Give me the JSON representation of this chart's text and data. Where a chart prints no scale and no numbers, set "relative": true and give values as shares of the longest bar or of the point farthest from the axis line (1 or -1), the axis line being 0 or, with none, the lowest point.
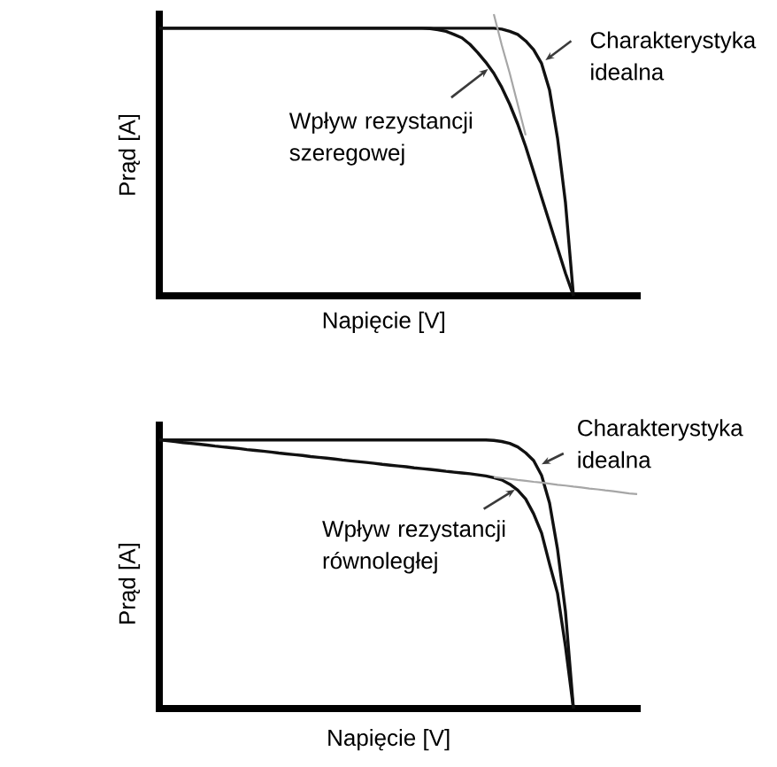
{
  "chart_data": [
    {
      "type": "line",
      "relative": true,
      "xlabel": "Napięcie [V]",
      "ylabel": "Prąd [A]",
      "annotations": [
        "Charakterystyka idealna",
        "Wpływ rezystancji szeregowej"
      ],
      "categories": [
        null,
        null,
        null,
        null,
        null,
        null,
        null,
        null,
        null,
        null,
        null,
        null,
        null,
        null,
        null,
        null,
        null,
        null,
        null,
        null,
        null,
        null,
        null,
        null,
        null,
        null,
        null,
        null,
        null,
        null,
        null,
        null,
        null,
        null,
        null,
        null,
        null,
        null,
        null,
        null,
        null,
        null,
        null,
        null,
        null,
        null,
        null,
        null,
        null,
        null,
        null,
        null,
        null,
        null,
        null,
        null,
        null,
        null,
        null,
        null,
        null
      ],
      "series": [
        {
          "color": "#111111",
          "values": [
            0.95,
            0.95,
            0.95,
            0.95,
            0.95,
            0.95,
            0.95,
            0.95,
            0.95,
            0.95,
            0.95,
            0.95,
            0.95,
            0.95,
            0.95,
            0.95,
            0.95,
            0.95,
            0.95,
            0.95,
            0.95,
            0.95,
            0.95,
            0.95,
            0.95,
            0.95,
            0.95,
            0.95,
            0.95,
            0.95,
            0.95,
            0.95,
            0.95,
            0.95,
            0.95,
            0.95,
            0.95,
            0.95,
            0.95,
            0.95,
            0.95,
            0.95,
            0.95,
            0.947,
            0.939,
            0.928,
            0.905,
            0.874,
            0.825,
            0.73,
            0.56,
            0.33,
            0,
            null,
            null,
            null,
            null,
            null,
            null,
            null,
            null
          ]
        },
        {
          "color": "#111111",
          "values": [
            0.95,
            0.95,
            0.95,
            0.95,
            0.95,
            0.95,
            0.95,
            0.95,
            0.95,
            0.95,
            0.95,
            0.95,
            0.95,
            0.95,
            0.95,
            0.95,
            0.95,
            0.95,
            0.95,
            0.95,
            0.95,
            0.95,
            0.95,
            0.95,
            0.95,
            0.95,
            0.95,
            0.95,
            0.95,
            0.95,
            0.95,
            0.95,
            0.95,
            0.95,
            0.949,
            0.945,
            0.939,
            0.928,
            0.916,
            0.893,
            0.863,
            0.829,
            0.79,
            0.74,
            0.68,
            0.61,
            0.53,
            0.44,
            0.35,
            0.26,
            0.17,
            0.08,
            0,
            null,
            null,
            null,
            null,
            null,
            null,
            null,
            null
          ]
        },
        {
          "color": "#a6a6a6",
          "values": [
            null,
            null,
            null,
            null,
            null,
            null,
            null,
            null,
            null,
            null,
            null,
            null,
            null,
            null,
            null,
            null,
            null,
            null,
            null,
            null,
            null,
            null,
            null,
            null,
            null,
            null,
            null,
            null,
            null,
            null,
            null,
            null,
            null,
            null,
            null,
            null,
            null,
            null,
            null,
            null,
            null,
            null,
            1.0,
            0.89,
            0.79,
            0.68,
            0.57,
            null,
            null,
            null,
            null,
            null,
            null,
            null,
            null,
            null,
            null,
            null,
            null,
            null,
            null
          ]
        }
      ]
    },
    {
      "type": "line",
      "relative": true,
      "xlabel": "Napięcie [V]",
      "ylabel": "Prąd [A]",
      "annotations": [
        "Charakterystyka idealna",
        "Wpływ rezystancji równoległej"
      ],
      "categories": [
        null,
        null,
        null,
        null,
        null,
        null,
        null,
        null,
        null,
        null,
        null,
        null,
        null,
        null,
        null,
        null,
        null,
        null,
        null,
        null,
        null,
        null,
        null,
        null,
        null,
        null,
        null,
        null,
        null,
        null,
        null,
        null,
        null,
        null,
        null,
        null,
        null,
        null,
        null,
        null,
        null,
        null,
        null,
        null,
        null,
        null,
        null,
        null,
        null,
        null,
        null,
        null,
        null,
        null,
        null,
        null,
        null,
        null,
        null,
        null,
        null
      ],
      "series": [
        {
          "color": "#111111",
          "values": [
            1.0,
            1.0,
            1.0,
            1.0,
            1.0,
            1.0,
            1.0,
            1.0,
            1.0,
            1.0,
            1.0,
            1.0,
            1.0,
            1.0,
            1.0,
            1.0,
            1.0,
            1.0,
            1.0,
            1.0,
            1.0,
            1.0,
            1.0,
            1.0,
            1.0,
            1.0,
            1.0,
            1.0,
            1.0,
            1.0,
            1.0,
            1.0,
            1.0,
            1.0,
            1.0,
            1.0,
            1.0,
            1.0,
            1.0,
            1.0,
            1.0,
            1.0,
            0.998,
            0.994,
            0.987,
            0.974,
            0.952,
            0.923,
            0.868,
            0.765,
            0.593,
            0.36,
            0,
            null,
            null,
            null,
            null,
            null,
            null,
            null,
            null
          ]
        },
        {
          "color": "#111111",
          "values": [
            1.0,
            0.997,
            0.994,
            0.99,
            0.987,
            0.984,
            0.981,
            0.977,
            0.974,
            0.971,
            0.968,
            0.964,
            0.961,
            0.958,
            0.955,
            0.951,
            0.948,
            0.945,
            0.942,
            0.938,
            0.935,
            0.932,
            0.929,
            0.925,
            0.922,
            0.919,
            0.916,
            0.913,
            0.909,
            0.906,
            0.903,
            0.9,
            0.896,
            0.893,
            0.89,
            0.887,
            0.883,
            0.88,
            0.877,
            0.874,
            0.87,
            0.866,
            0.859,
            0.851,
            0.835,
            0.813,
            0.78,
            0.725,
            0.653,
            0.538,
            0.429,
            0.231,
            0,
            null,
            null,
            null,
            null,
            null,
            null,
            null,
            null
          ]
        },
        {
          "color": "#a6a6a6",
          "values": [
            null,
            null,
            null,
            null,
            null,
            null,
            null,
            null,
            null,
            null,
            null,
            null,
            null,
            null,
            null,
            null,
            null,
            null,
            null,
            null,
            null,
            null,
            null,
            null,
            null,
            null,
            null,
            null,
            null,
            null,
            null,
            null,
            null,
            null,
            null,
            null,
            null,
            null,
            null,
            null,
            null,
            null,
            0.862,
            0.858,
            0.855,
            0.851,
            0.848,
            0.844,
            0.841,
            0.837,
            0.833,
            0.83,
            0.826,
            0.823,
            0.819,
            0.816,
            0.812,
            0.809,
            0.805,
            0.801,
            0.798
          ]
        }
      ]
    }
  ]
}
